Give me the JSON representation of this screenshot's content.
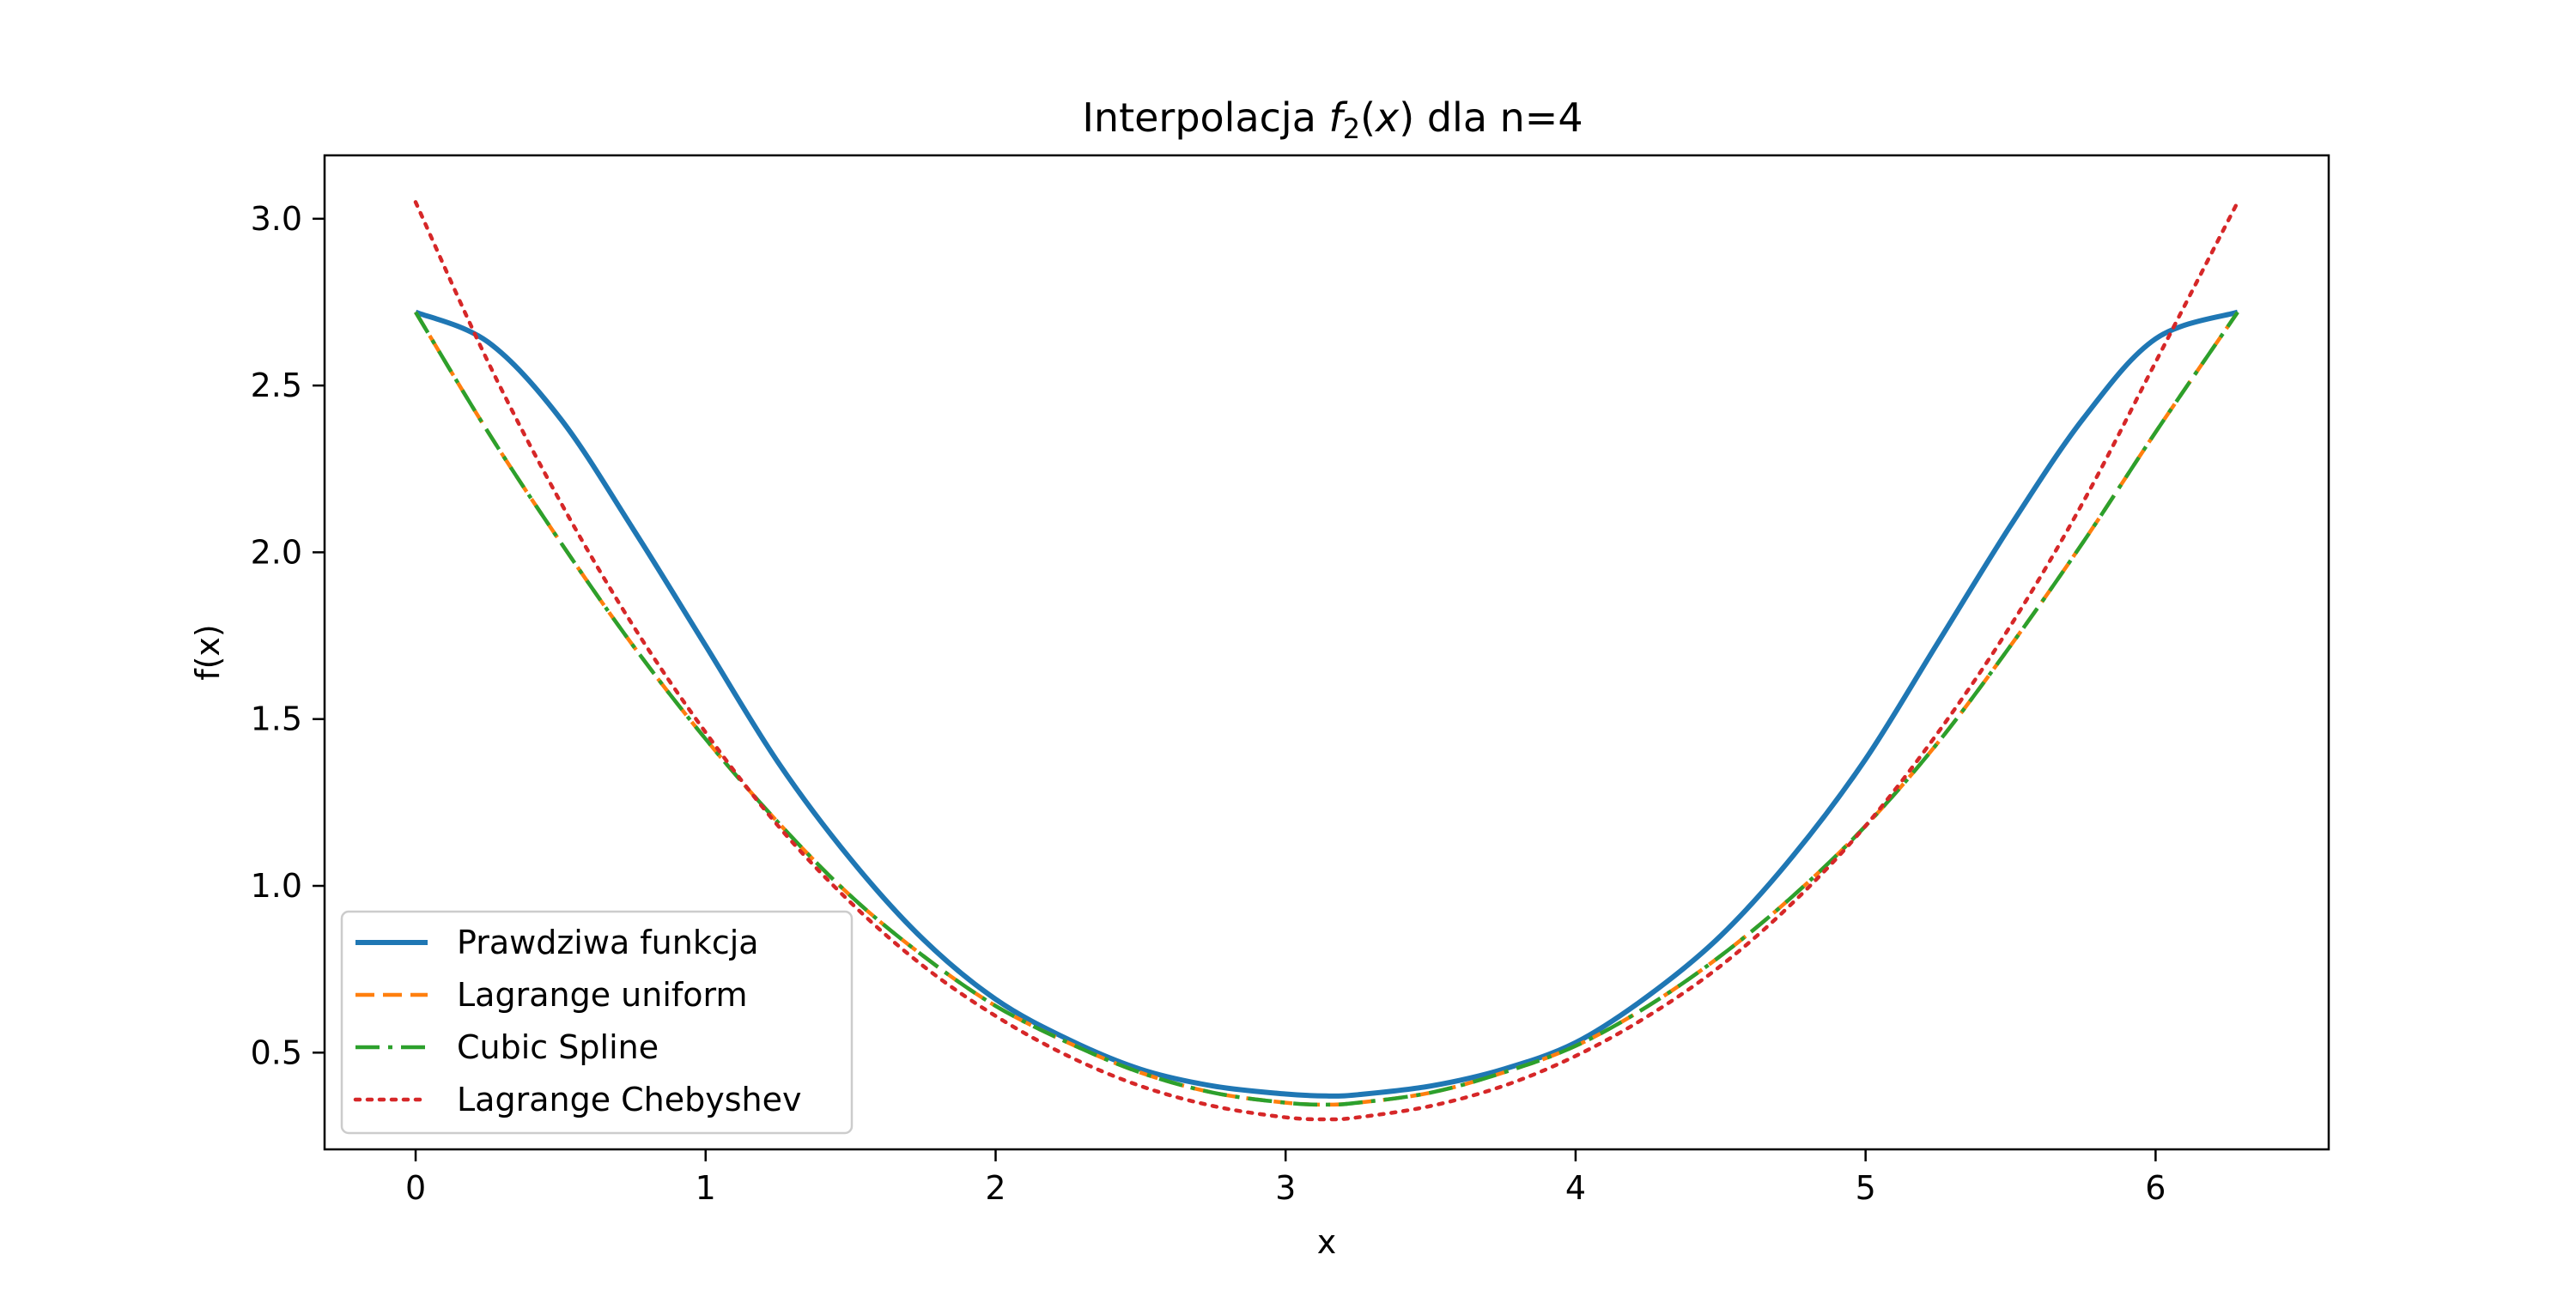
{
  "chart_data": {
    "type": "line",
    "title_prefix": "Interpolacja ",
    "title_math_var": "f",
    "title_math_sub": "2",
    "title_math_arg_open": "(",
    "title_math_arg": "x",
    "title_math_arg_close": ")",
    "title_suffix": " dla n=4",
    "xlabel": "x",
    "ylabel": "f(x)",
    "xlim": [
      -0.314,
      6.597
    ],
    "ylim": [
      0.21,
      3.19
    ],
    "xticks": [
      0,
      1,
      2,
      3,
      4,
      5,
      6
    ],
    "xtick_labels": [
      "0",
      "1",
      "2",
      "3",
      "4",
      "5",
      "6"
    ],
    "yticks": [
      0.5,
      1.0,
      1.5,
      2.0,
      2.5,
      3.0
    ],
    "ytick_labels": [
      "0.5",
      "1.0",
      "1.5",
      "2.0",
      "2.5",
      "3.0"
    ],
    "grid": false,
    "legend_position": "lower-left",
    "series": [
      {
        "name": "Prawdziwa funkcja",
        "color": "#1f77b4",
        "style": "solid",
        "x": [
          0,
          0.25,
          0.5,
          0.75,
          1.0,
          1.25,
          1.5,
          1.75,
          2.0,
          2.25,
          2.5,
          2.75,
          3.0,
          3.1416,
          3.25,
          3.5,
          3.75,
          4.0,
          4.25,
          4.5,
          4.75,
          5.0,
          5.25,
          5.5,
          5.75,
          6.0,
          6.2832
        ],
        "y": [
          2.72,
          2.63,
          2.4,
          2.07,
          1.72,
          1.37,
          1.08,
          0.84,
          0.66,
          0.54,
          0.45,
          0.4,
          0.376,
          0.37,
          0.374,
          0.4,
          0.45,
          0.53,
          0.67,
          0.85,
          1.09,
          1.38,
          1.73,
          2.08,
          2.4,
          2.64,
          2.72
        ]
      },
      {
        "name": "Lagrange uniform",
        "color": "#ff7f0e",
        "style": "dashed",
        "x": [
          0,
          0.25,
          0.5,
          0.75,
          1.0,
          1.25,
          1.5,
          1.75,
          2.0,
          2.25,
          2.5,
          2.75,
          3.0,
          3.1416,
          3.25,
          3.5,
          3.75,
          4.0,
          4.25,
          4.5,
          4.75,
          5.0,
          5.25,
          5.5,
          5.75,
          6.0,
          6.2832
        ],
        "y": [
          2.72,
          2.36,
          2.03,
          1.72,
          1.44,
          1.19,
          0.97,
          0.79,
          0.64,
          0.53,
          0.44,
          0.38,
          0.35,
          0.344,
          0.35,
          0.38,
          0.44,
          0.52,
          0.64,
          0.79,
          0.97,
          1.18,
          1.43,
          1.72,
          2.03,
          2.36,
          2.72
        ]
      },
      {
        "name": "Cubic Spline",
        "color": "#2ca02c",
        "style": "dashdot",
        "x": [
          0,
          0.25,
          0.5,
          0.75,
          1.0,
          1.25,
          1.5,
          1.75,
          2.0,
          2.25,
          2.5,
          2.75,
          3.0,
          3.1416,
          3.25,
          3.5,
          3.75,
          4.0,
          4.25,
          4.5,
          4.75,
          5.0,
          5.25,
          5.5,
          5.75,
          6.0,
          6.2832
        ],
        "y": [
          2.72,
          2.36,
          2.03,
          1.72,
          1.44,
          1.19,
          0.97,
          0.79,
          0.64,
          0.53,
          0.44,
          0.38,
          0.35,
          0.344,
          0.35,
          0.38,
          0.44,
          0.52,
          0.64,
          0.79,
          0.97,
          1.18,
          1.43,
          1.72,
          2.03,
          2.36,
          2.72
        ]
      },
      {
        "name": "Lagrange Chebyshev",
        "color": "#d62728",
        "style": "dotted",
        "x": [
          0,
          0.25,
          0.5,
          0.75,
          1.0,
          1.25,
          1.5,
          1.75,
          2.0,
          2.25,
          2.5,
          2.75,
          3.0,
          3.1416,
          3.25,
          3.5,
          3.75,
          4.0,
          4.25,
          4.5,
          4.75,
          5.0,
          5.25,
          5.5,
          5.75,
          6.0,
          6.2832
        ],
        "y": [
          3.05,
          2.57,
          2.15,
          1.78,
          1.46,
          1.18,
          0.95,
          0.76,
          0.61,
          0.49,
          0.4,
          0.34,
          0.306,
          0.3,
          0.306,
          0.34,
          0.4,
          0.49,
          0.61,
          0.76,
          0.95,
          1.18,
          1.46,
          1.78,
          2.15,
          2.57,
          3.05
        ]
      }
    ]
  }
}
